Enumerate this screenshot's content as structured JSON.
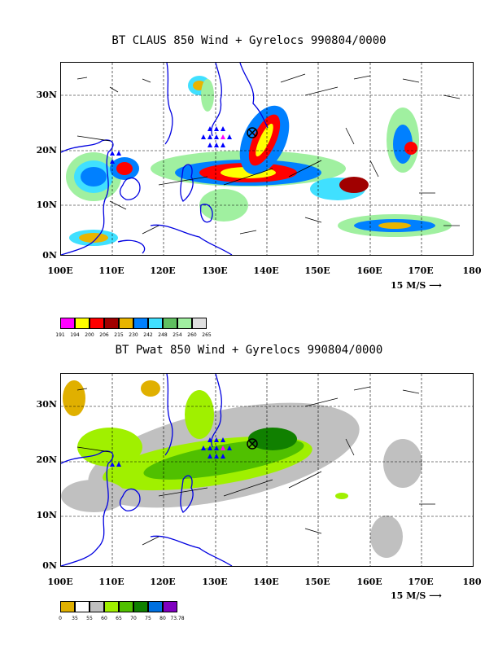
{
  "top": {
    "title": "BT CLAUS 850 Wind + Gyrelocs 990804/0000",
    "y_ticks": [
      "30N",
      "20N",
      "10N",
      "0N"
    ],
    "x_ticks": [
      "100E",
      "110E",
      "120E",
      "130E",
      "140E",
      "150E",
      "160E",
      "170E",
      "180"
    ],
    "reference_vector": "15 M/S",
    "colorbar": {
      "labels": [
        "191",
        "194",
        "200",
        "206",
        "215",
        "230",
        "242",
        "248",
        "254",
        "260",
        "265"
      ],
      "colors": [
        "#ff00ff",
        "#ffff00",
        "#ff0000",
        "#a00000",
        "#e8b400",
        "#0080ff",
        "#40e0ff",
        "#60c060",
        "#a0f0a0",
        "#e0e0e0"
      ]
    }
  },
  "bottom": {
    "title": "BT Pwat 850 Wind + Gyrelocs 990804/0000",
    "y_ticks": [
      "30N",
      "20N",
      "10N",
      "0N"
    ],
    "x_ticks": [
      "100E",
      "110E",
      "120E",
      "130E",
      "140E",
      "150E",
      "160E",
      "170E",
      "180"
    ],
    "reference_vector": "15 M/S",
    "colorbar": {
      "labels": [
        "0",
        "35",
        "55",
        "60",
        "65",
        "70",
        "75",
        "80",
        "73.78"
      ],
      "colors": [
        "#e0b000",
        "#ffffff",
        "#c0c0c0",
        "#a0f000",
        "#50c000",
        "#108000",
        "#0070e0",
        "#8000c0"
      ]
    }
  },
  "map_extent": {
    "lon_range": [
      100,
      180
    ],
    "lat_range": [
      0,
      35
    ]
  },
  "gyre_center": {
    "lon": 137,
    "lat": 23
  }
}
